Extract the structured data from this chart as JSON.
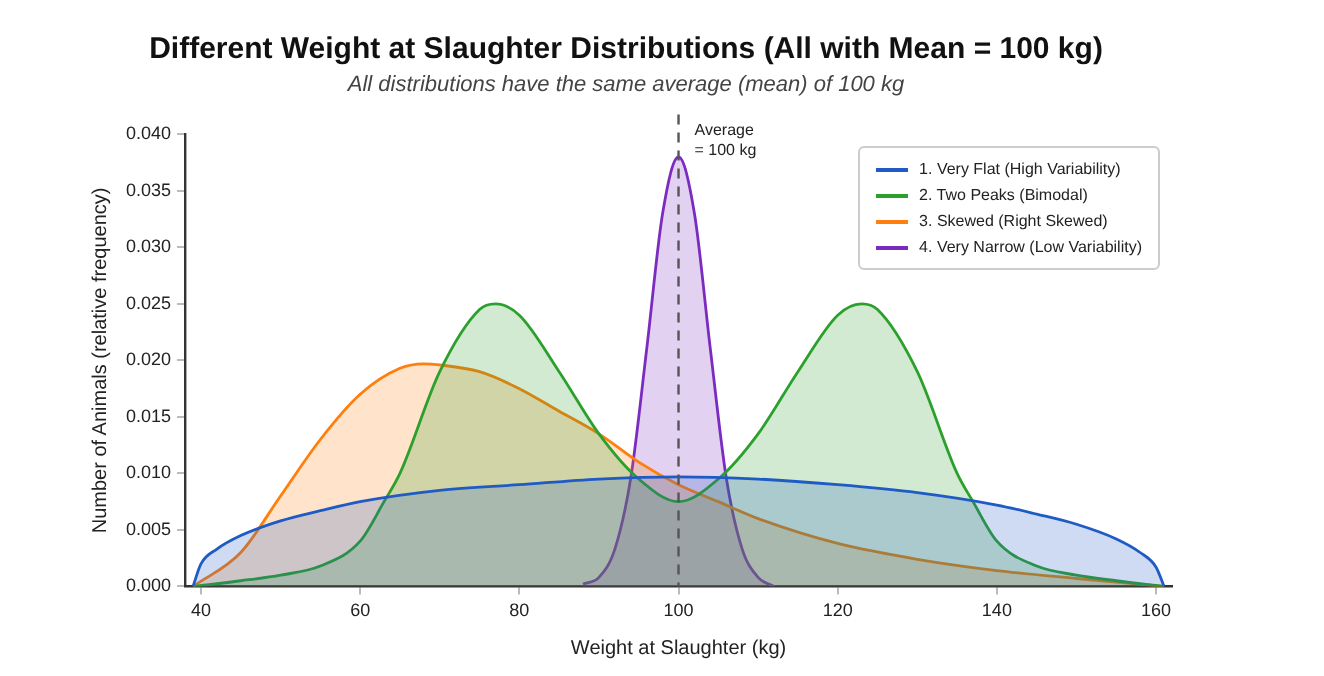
{
  "chart_data": {
    "type": "area",
    "title": "Different Weight at Slaughter Distributions (All with Mean = 100 kg)",
    "subtitle": "All distributions have the same average (mean) of 100 kg",
    "xlabel": "Weight at Slaughter (kg)",
    "ylabel": "Number of Animals (relative frequency)",
    "series": [
      {
        "name": "1. Very Flat (High Variability)",
        "color": "#1f5bc4",
        "x": [
          39,
          40,
          42,
          45,
          50,
          55,
          60,
          70,
          80,
          90,
          100,
          110,
          120,
          130,
          140,
          145,
          150,
          155,
          158,
          160,
          161
        ],
        "values": [
          0,
          0.002,
          0.0033,
          0.0045,
          0.0058,
          0.0067,
          0.0075,
          0.0085,
          0.009,
          0.0095,
          0.0097,
          0.0095,
          0.009,
          0.0083,
          0.0072,
          0.0064,
          0.0055,
          0.0042,
          0.003,
          0.0017,
          0
        ]
      },
      {
        "name": "2. Two Peaks (Bimodal)",
        "color": "#2ca02c",
        "x": [
          39,
          45,
          50,
          55,
          60,
          63,
          65,
          70,
          75,
          77,
          80,
          85,
          90,
          95,
          100,
          105,
          110,
          115,
          120,
          123,
          125,
          130,
          135,
          137,
          140,
          145,
          150,
          155,
          161
        ],
        "values": [
          0,
          0.0005,
          0.001,
          0.0018,
          0.004,
          0.0075,
          0.01,
          0.019,
          0.0245,
          0.025,
          0.024,
          0.019,
          0.0135,
          0.0095,
          0.0075,
          0.0095,
          0.0135,
          0.019,
          0.024,
          0.025,
          0.0245,
          0.019,
          0.01,
          0.0075,
          0.004,
          0.0018,
          0.001,
          0.0005,
          0
        ]
      },
      {
        "name": "3. Skewed (Right Skewed)",
        "color": "#ff7f0e",
        "x": [
          39,
          45,
          50,
          55,
          60,
          65,
          68,
          70,
          75,
          80,
          85,
          90,
          95,
          100,
          105,
          110,
          120,
          130,
          140,
          150,
          161
        ],
        "values": [
          0,
          0.003,
          0.008,
          0.013,
          0.017,
          0.0193,
          0.0197,
          0.0196,
          0.019,
          0.0175,
          0.0155,
          0.0135,
          0.011,
          0.009,
          0.0075,
          0.006,
          0.0038,
          0.0024,
          0.0014,
          0.0007,
          0
        ]
      },
      {
        "name": "4. Very Narrow (Low Variability)",
        "color": "#7b2cbf",
        "x": [
          88,
          90,
          92,
          94,
          96,
          98,
          100,
          102,
          104,
          106,
          108,
          110,
          112
        ],
        "values": [
          0.0002,
          0.0008,
          0.0033,
          0.0096,
          0.021,
          0.033,
          0.038,
          0.033,
          0.021,
          0.0096,
          0.0033,
          0.0008,
          0
        ]
      }
    ],
    "xlim": [
      38,
      162
    ],
    "xticks": [
      40,
      60,
      80,
      100,
      120,
      140,
      160
    ],
    "ylim": [
      0,
      0.04
    ],
    "yticks": [
      {
        "value": 0,
        "label": "0.000"
      },
      {
        "value": 0.005,
        "label": "0.005"
      },
      {
        "value": 0.01,
        "label": "0.010"
      },
      {
        "value": 0.015,
        "label": "0.015"
      },
      {
        "value": 0.02,
        "label": "0.020"
      },
      {
        "value": 0.025,
        "label": "0.025"
      },
      {
        "value": 0.03,
        "label": "0.030"
      },
      {
        "value": 0.035,
        "label": "0.035"
      },
      {
        "value": 0.04,
        "label": "0.040"
      }
    ],
    "ref_lines": [
      {
        "axis": "x",
        "value": 100,
        "label": "Average = 100 kg",
        "color": "#555555",
        "line_style": "dashed"
      }
    ],
    "grid": false,
    "legend": "top right",
    "marker": "none",
    "line_style": "solid"
  }
}
